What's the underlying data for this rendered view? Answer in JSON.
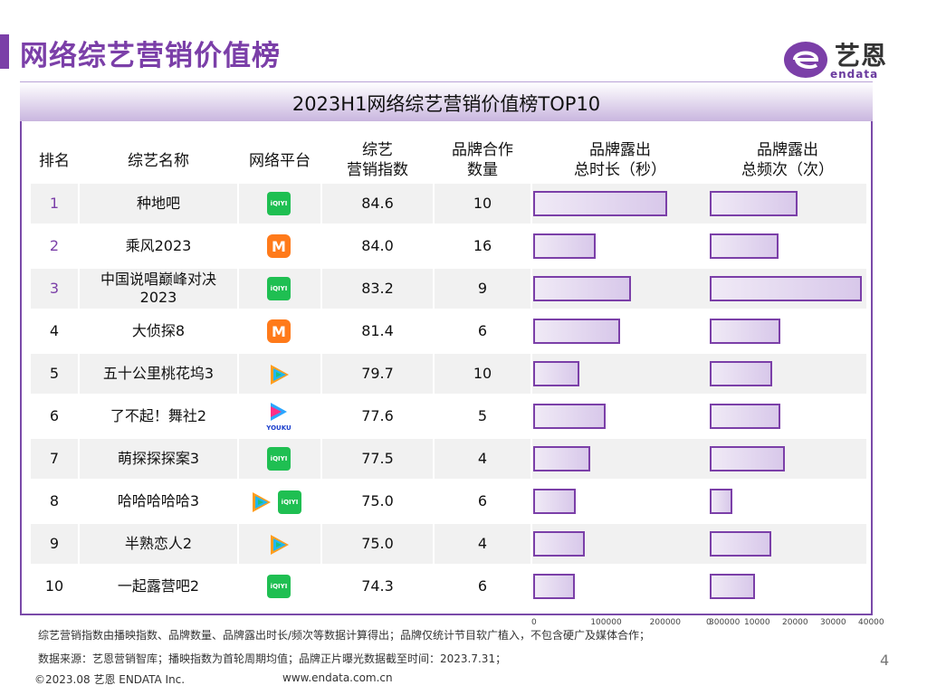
{
  "page": {
    "title": "网络综艺营销价值榜",
    "page_number": "4"
  },
  "logo": {
    "cn": "艺恩",
    "en": "endata"
  },
  "table": {
    "title": "2023H1网络综艺营销价值榜TOP10",
    "headers": {
      "rank": "排名",
      "name": "综艺名称",
      "platform": "网络平台",
      "index_l1": "综艺",
      "index_l2": "营销指数",
      "coop_l1": "品牌合作",
      "coop_l2": "数量",
      "duration_l1": "品牌露出",
      "duration_l2": "总时长（秒）",
      "freq_l1": "品牌露出",
      "freq_l2": "总频次（次）"
    },
    "platform_icons": {
      "iqiyi": "iQIYI",
      "mango": "M"
    }
  },
  "chart_data": {
    "type": "table",
    "rows": [
      {
        "rank": "1",
        "name": "种地吧",
        "platforms": [
          "iqiyi"
        ],
        "index": "84.6",
        "coop": "10",
        "duration": 227000,
        "frequency": 23000
      },
      {
        "rank": "2",
        "name": "乘风2023",
        "platforms": [
          "mango"
        ],
        "index": "84.0",
        "coop": "16",
        "duration": 105000,
        "frequency": 18000
      },
      {
        "rank": "3",
        "name": "中国说唱巅峰对决 2023",
        "platforms": [
          "iqiyi"
        ],
        "index": "83.2",
        "coop": "9",
        "duration": 165000,
        "frequency": 40000
      },
      {
        "rank": "4",
        "name": "大侦探8",
        "platforms": [
          "mango"
        ],
        "index": "81.4",
        "coop": "6",
        "duration": 147000,
        "frequency": 18500
      },
      {
        "rank": "5",
        "name": "五十公里桃花坞3",
        "platforms": [
          "tencent"
        ],
        "index": "79.7",
        "coop": "10",
        "duration": 78000,
        "frequency": 16500
      },
      {
        "rank": "6",
        "name": "了不起！舞社2",
        "platforms": [
          "youku"
        ],
        "index": "77.6",
        "coop": "5",
        "duration": 122000,
        "frequency": 18500
      },
      {
        "rank": "7",
        "name": "萌探探探案3",
        "platforms": [
          "iqiyi"
        ],
        "index": "77.5",
        "coop": "4",
        "duration": 97000,
        "frequency": 19800
      },
      {
        "rank": "8",
        "name": "哈哈哈哈哈3",
        "platforms": [
          "tencent",
          "iqiyi"
        ],
        "index": "75.0",
        "coop": "6",
        "duration": 72000,
        "frequency": 6000
      },
      {
        "rank": "9",
        "name": "半熟恋人2",
        "platforms": [
          "tencent"
        ],
        "index": "75.0",
        "coop": "4",
        "duration": 88000,
        "frequency": 16300
      },
      {
        "rank": "10",
        "name": "一起露营吧2",
        "platforms": [
          "iqiyi"
        ],
        "index": "74.3",
        "coop": "6",
        "duration": 70000,
        "frequency": 12000
      }
    ],
    "duration_axis": {
      "ticks": [
        "0",
        "100000",
        "200000",
        "300000"
      ],
      "max": 300000
    },
    "frequency_axis": {
      "ticks": [
        "0",
        "10000",
        "20000",
        "30000",
        "40000"
      ],
      "max": 40000
    },
    "bar_color": "#7b3fa8"
  },
  "footer": {
    "note1": "综艺营销指数由播映指数、品牌数量、品牌露出时长/频次等数据计算得出；品牌仅统计节目软广植入，不包含硬广及媒体合作；",
    "note2": "数据来源：艺恩营销智库；播映指数为首轮周期均值；品牌正片曝光数据截至时间：2023.7.31；",
    "copyright": "©2023.08 艺恩 ENDATA Inc.",
    "website": "www.endata.com.cn"
  }
}
